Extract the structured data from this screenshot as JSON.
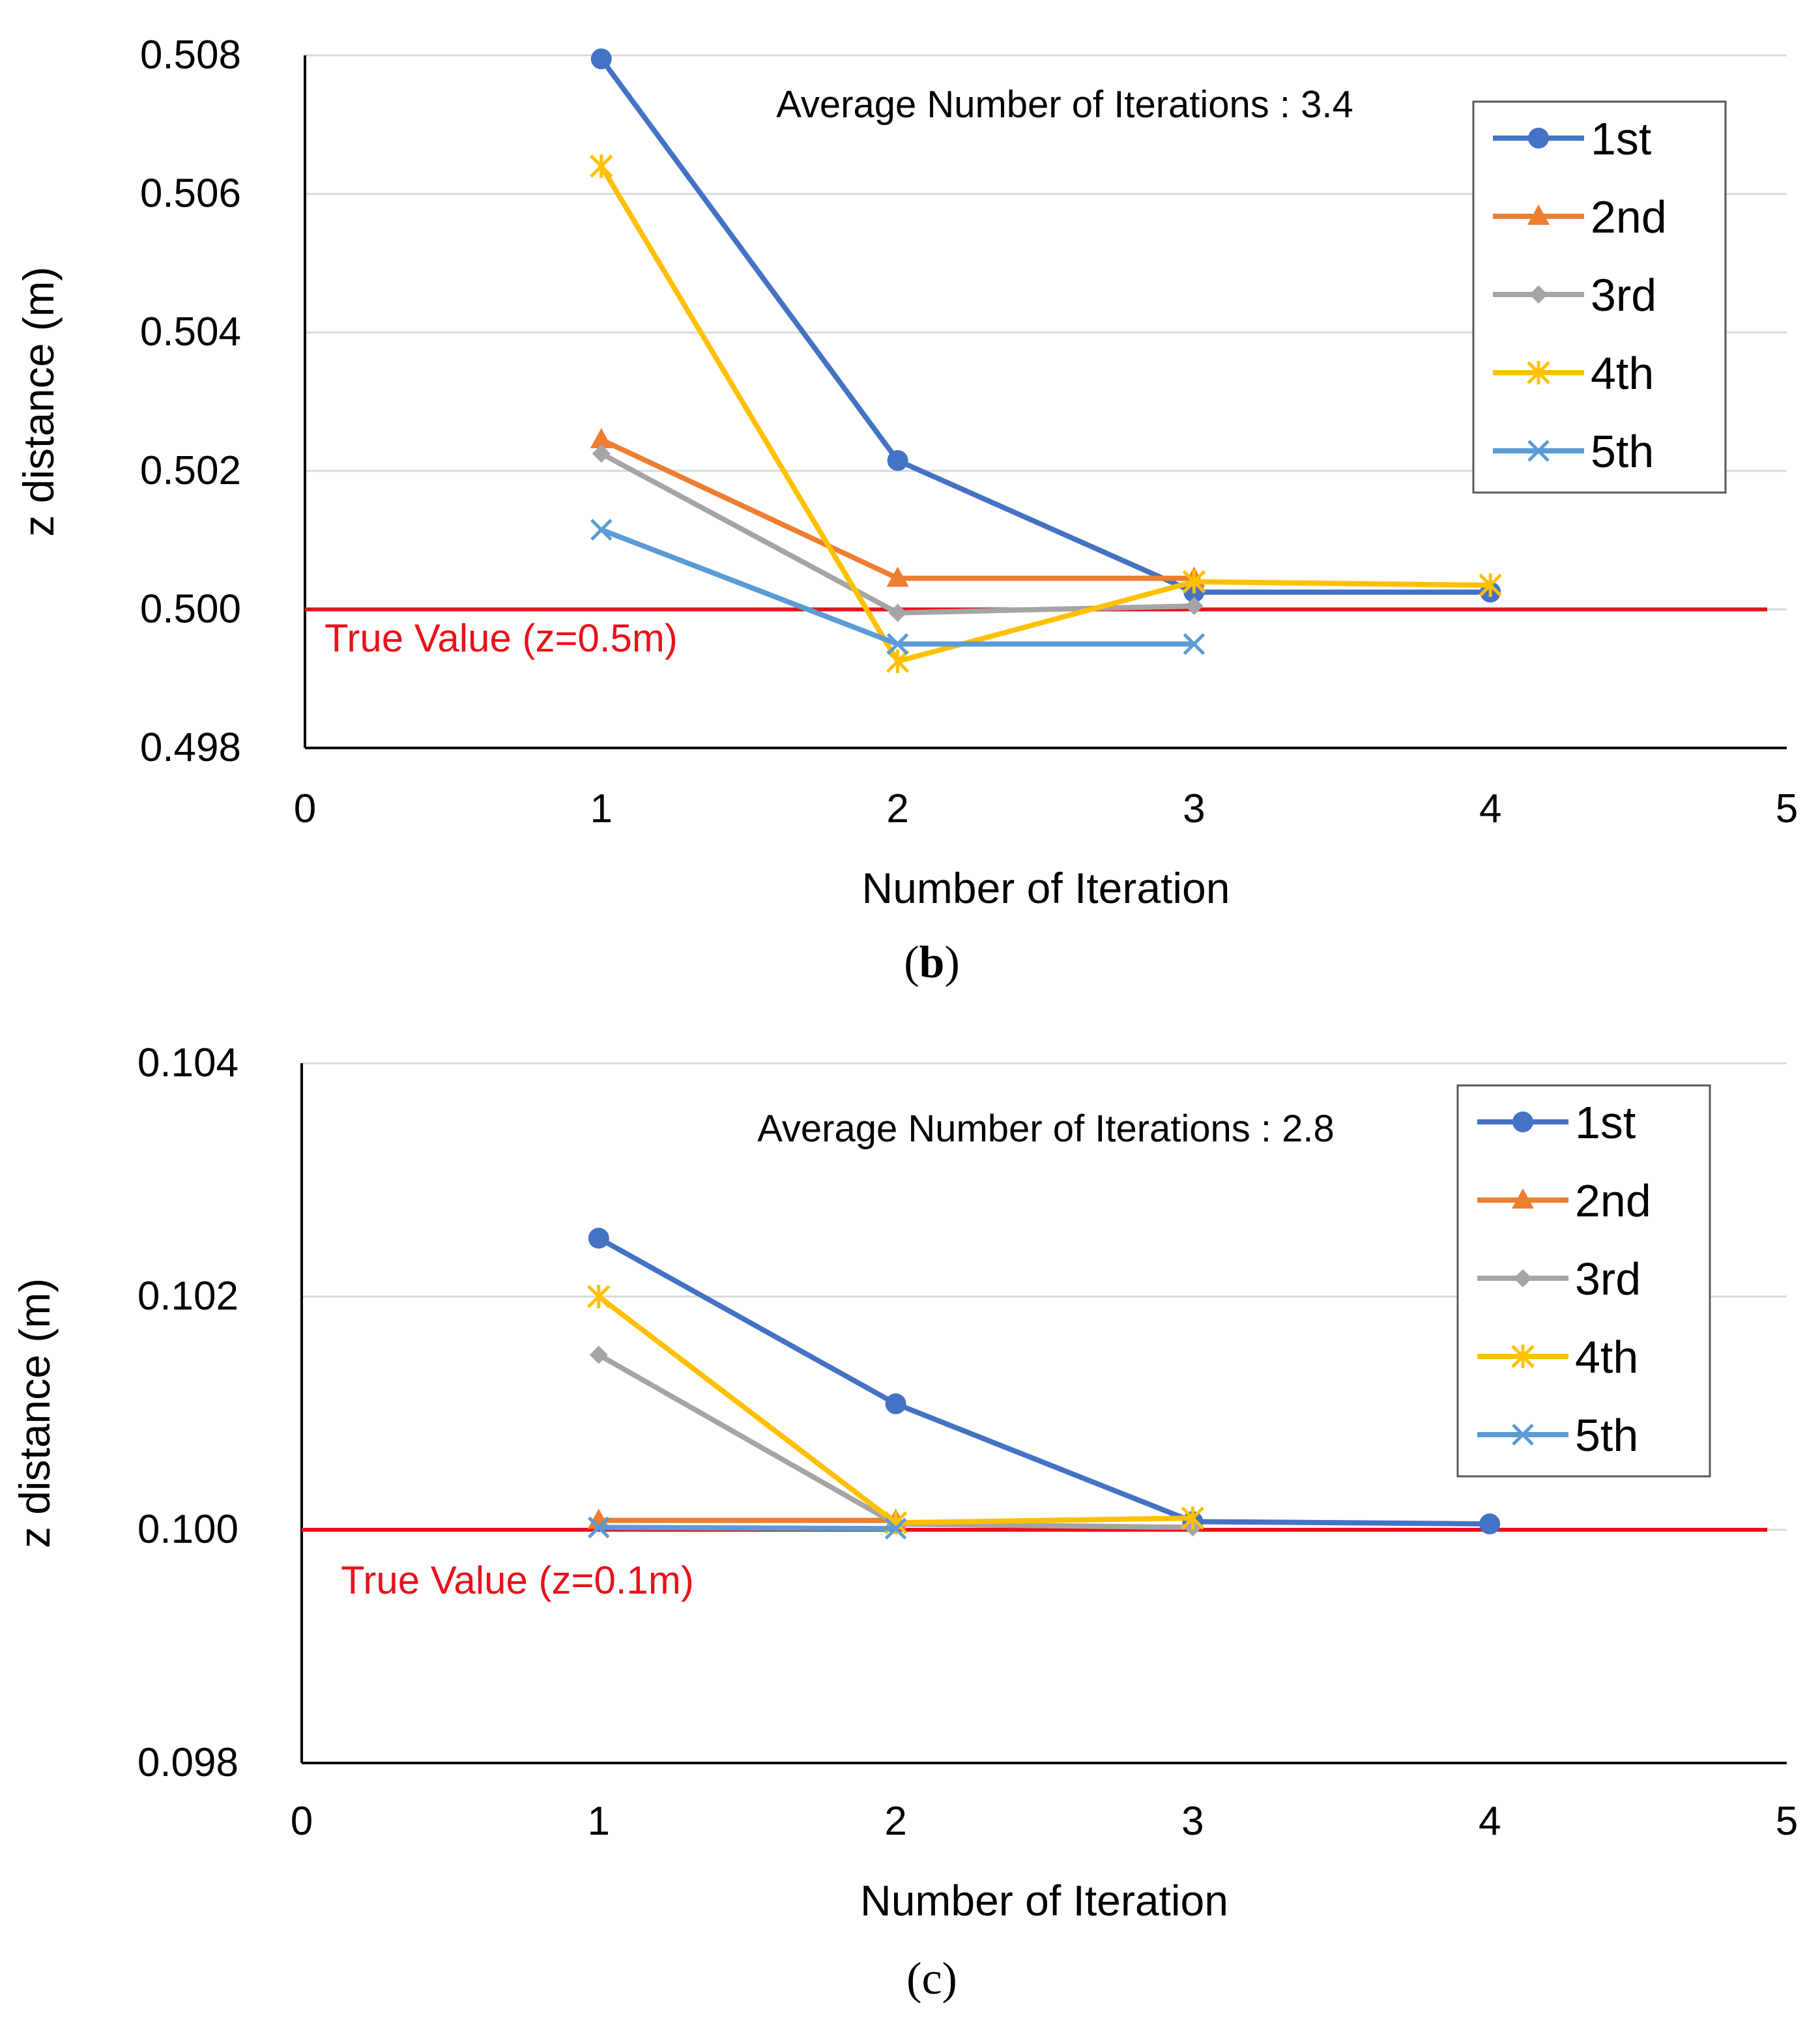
{
  "chart_data": [
    {
      "type": "line",
      "panel": "b",
      "caption": {
        "open": "(",
        "letter": "b",
        "close": ")"
      },
      "annotation": "Average Number of Iterations : 3.4",
      "xlabel": "Number of Iteration",
      "ylabel": "z distance (m)",
      "xlim": [
        0,
        5
      ],
      "ylim": [
        0.498,
        0.508
      ],
      "xticks": [
        "0",
        "1",
        "2",
        "3",
        "4",
        "5"
      ],
      "yticks": [
        "0.508",
        "0.506",
        "0.504",
        "0.502",
        "0.500",
        "0.498"
      ],
      "grid": "horizontal",
      "legend_position": "top-right",
      "true_value": {
        "y": 0.5,
        "label": "True Value (z=0.5m)",
        "color": "#E8111B"
      },
      "series": [
        {
          "name": "1st",
          "color": "#4472C4",
          "marker": "circle",
          "x": [
            1,
            2,
            3,
            4
          ],
          "values": [
            0.50795,
            0.50215,
            0.50025,
            0.50025
          ]
        },
        {
          "name": "2nd",
          "color": "#ED7D31",
          "marker": "triangle",
          "x": [
            1,
            2,
            3
          ],
          "values": [
            0.50245,
            0.50045,
            0.50045
          ]
        },
        {
          "name": "3rd",
          "color": "#A5A5A5",
          "marker": "diamond",
          "x": [
            1,
            2,
            3
          ],
          "values": [
            0.50225,
            0.49995,
            0.50005
          ]
        },
        {
          "name": "4th",
          "color": "#FFC000",
          "marker": "star",
          "x": [
            1,
            2,
            3,
            4
          ],
          "values": [
            0.5064,
            0.49925,
            0.5004,
            0.50035
          ]
        },
        {
          "name": "5th",
          "color": "#5B9BD5",
          "marker": "x",
          "x": [
            1,
            2,
            3
          ],
          "values": [
            0.50115,
            0.4995,
            0.4995
          ]
        }
      ]
    },
    {
      "type": "line",
      "panel": "c",
      "caption": {
        "open": "(",
        "letter": "c",
        "close": ")"
      },
      "annotation": "Average Number of Iterations : 2.8",
      "xlabel": "Number of Iteration",
      "ylabel": "z distance (m)",
      "xlim": [
        0,
        5
      ],
      "ylim": [
        0.098,
        0.104
      ],
      "xticks": [
        "0",
        "1",
        "2",
        "3",
        "4",
        "5"
      ],
      "yticks": [
        "0.104",
        "0.102",
        "0.100",
        "0.098"
      ],
      "grid": "horizontal",
      "legend_position": "top-right",
      "true_value": {
        "y": 0.1,
        "label": "True Value (z=0.1m)",
        "color": "#E8111B"
      },
      "series": [
        {
          "name": "1st",
          "color": "#4472C4",
          "marker": "circle",
          "x": [
            1,
            2,
            3,
            4
          ],
          "values": [
            0.1025,
            0.10108,
            0.10007,
            0.10005
          ]
        },
        {
          "name": "2nd",
          "color": "#ED7D31",
          "marker": "triangle",
          "x": [
            1,
            2
          ],
          "values": [
            0.10008,
            0.10008
          ]
        },
        {
          "name": "3rd",
          "color": "#A5A5A5",
          "marker": "diamond",
          "x": [
            1,
            2,
            3
          ],
          "values": [
            0.1015,
            0.10005,
            0.10002
          ]
        },
        {
          "name": "4th",
          "color": "#FFC000",
          "marker": "star",
          "x": [
            1,
            2,
            3
          ],
          "values": [
            0.102,
            0.10006,
            0.1001
          ]
        },
        {
          "name": "5th",
          "color": "#5B9BD5",
          "marker": "x",
          "x": [
            1,
            2
          ],
          "values": [
            0.10002,
            0.10001
          ]
        }
      ]
    }
  ]
}
